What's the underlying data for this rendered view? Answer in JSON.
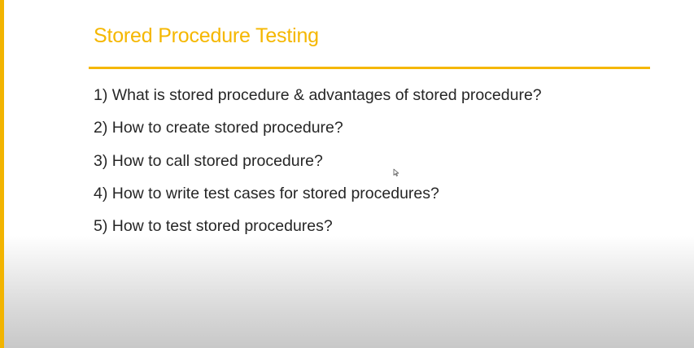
{
  "slide": {
    "title": "Stored Procedure Testing",
    "items": [
      "1) What is stored procedure & advantages of stored procedure?",
      "2) How to create stored procedure?",
      "3) How to call stored procedure?",
      "4) How to write test cases for stored procedures?",
      "5) How to test stored procedures?"
    ]
  },
  "colors": {
    "accent": "#f5b700",
    "text": "#262626"
  },
  "icons": {
    "cursor": "mouse-pointer-icon"
  }
}
